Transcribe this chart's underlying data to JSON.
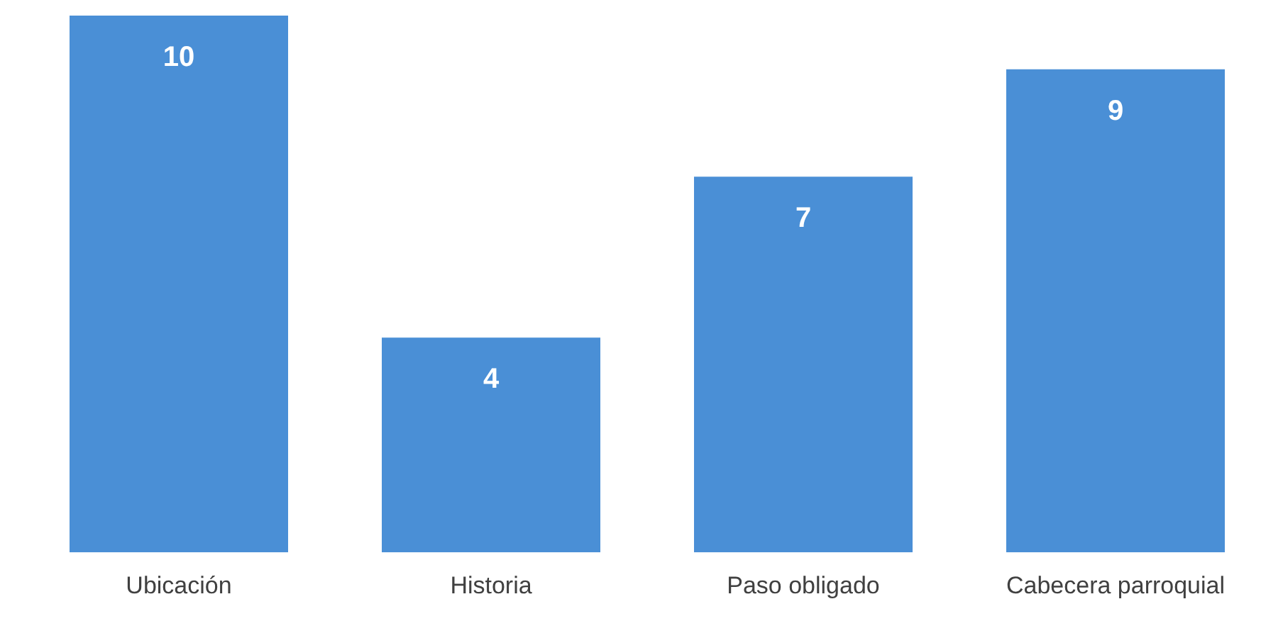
{
  "chart_data": {
    "type": "bar",
    "categories": [
      "Ubicación",
      "Historia",
      "Paso obligado",
      "Cabecera parroquial"
    ],
    "values": [
      10,
      4,
      7,
      9
    ],
    "color": "#4a8fd6",
    "data_labels": true,
    "relative": false,
    "grid": false,
    "legend": false
  }
}
